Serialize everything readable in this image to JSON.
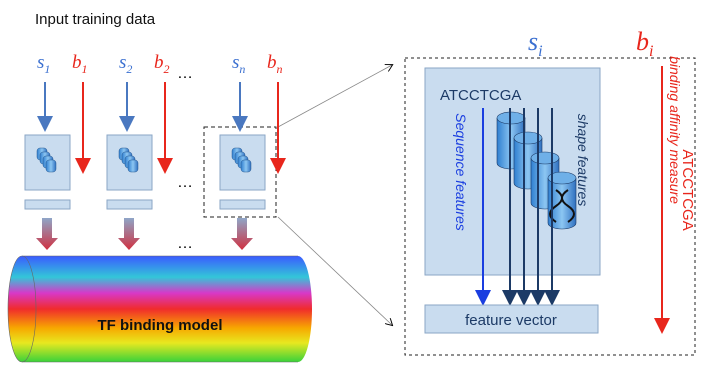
{
  "title": "Input training data",
  "inputs": [
    {
      "s": {
        "letter": "s",
        "sub": "1"
      },
      "b": {
        "letter": "b",
        "sub": "1"
      }
    },
    {
      "s": {
        "letter": "s",
        "sub": "2"
      },
      "b": {
        "letter": "b",
        "sub": "2"
      }
    },
    {
      "s": {
        "letter": "s",
        "sub": "n"
      },
      "b": {
        "letter": "b",
        "sub": "n"
      }
    }
  ],
  "ellipses": [
    "…",
    "…",
    "…"
  ],
  "model": "TF binding model",
  "detail": {
    "s": {
      "letter": "s",
      "sub": "i"
    },
    "b": {
      "letter": "b",
      "sub": "i"
    },
    "sequence": "ATCCTCGA",
    "sequence_features": "Sequence features",
    "shape_features": "shape features",
    "feature_vector": "feature vector",
    "affinity_sequence": "ATCCTCGA",
    "affinity_label": "binding affinity measure"
  }
}
